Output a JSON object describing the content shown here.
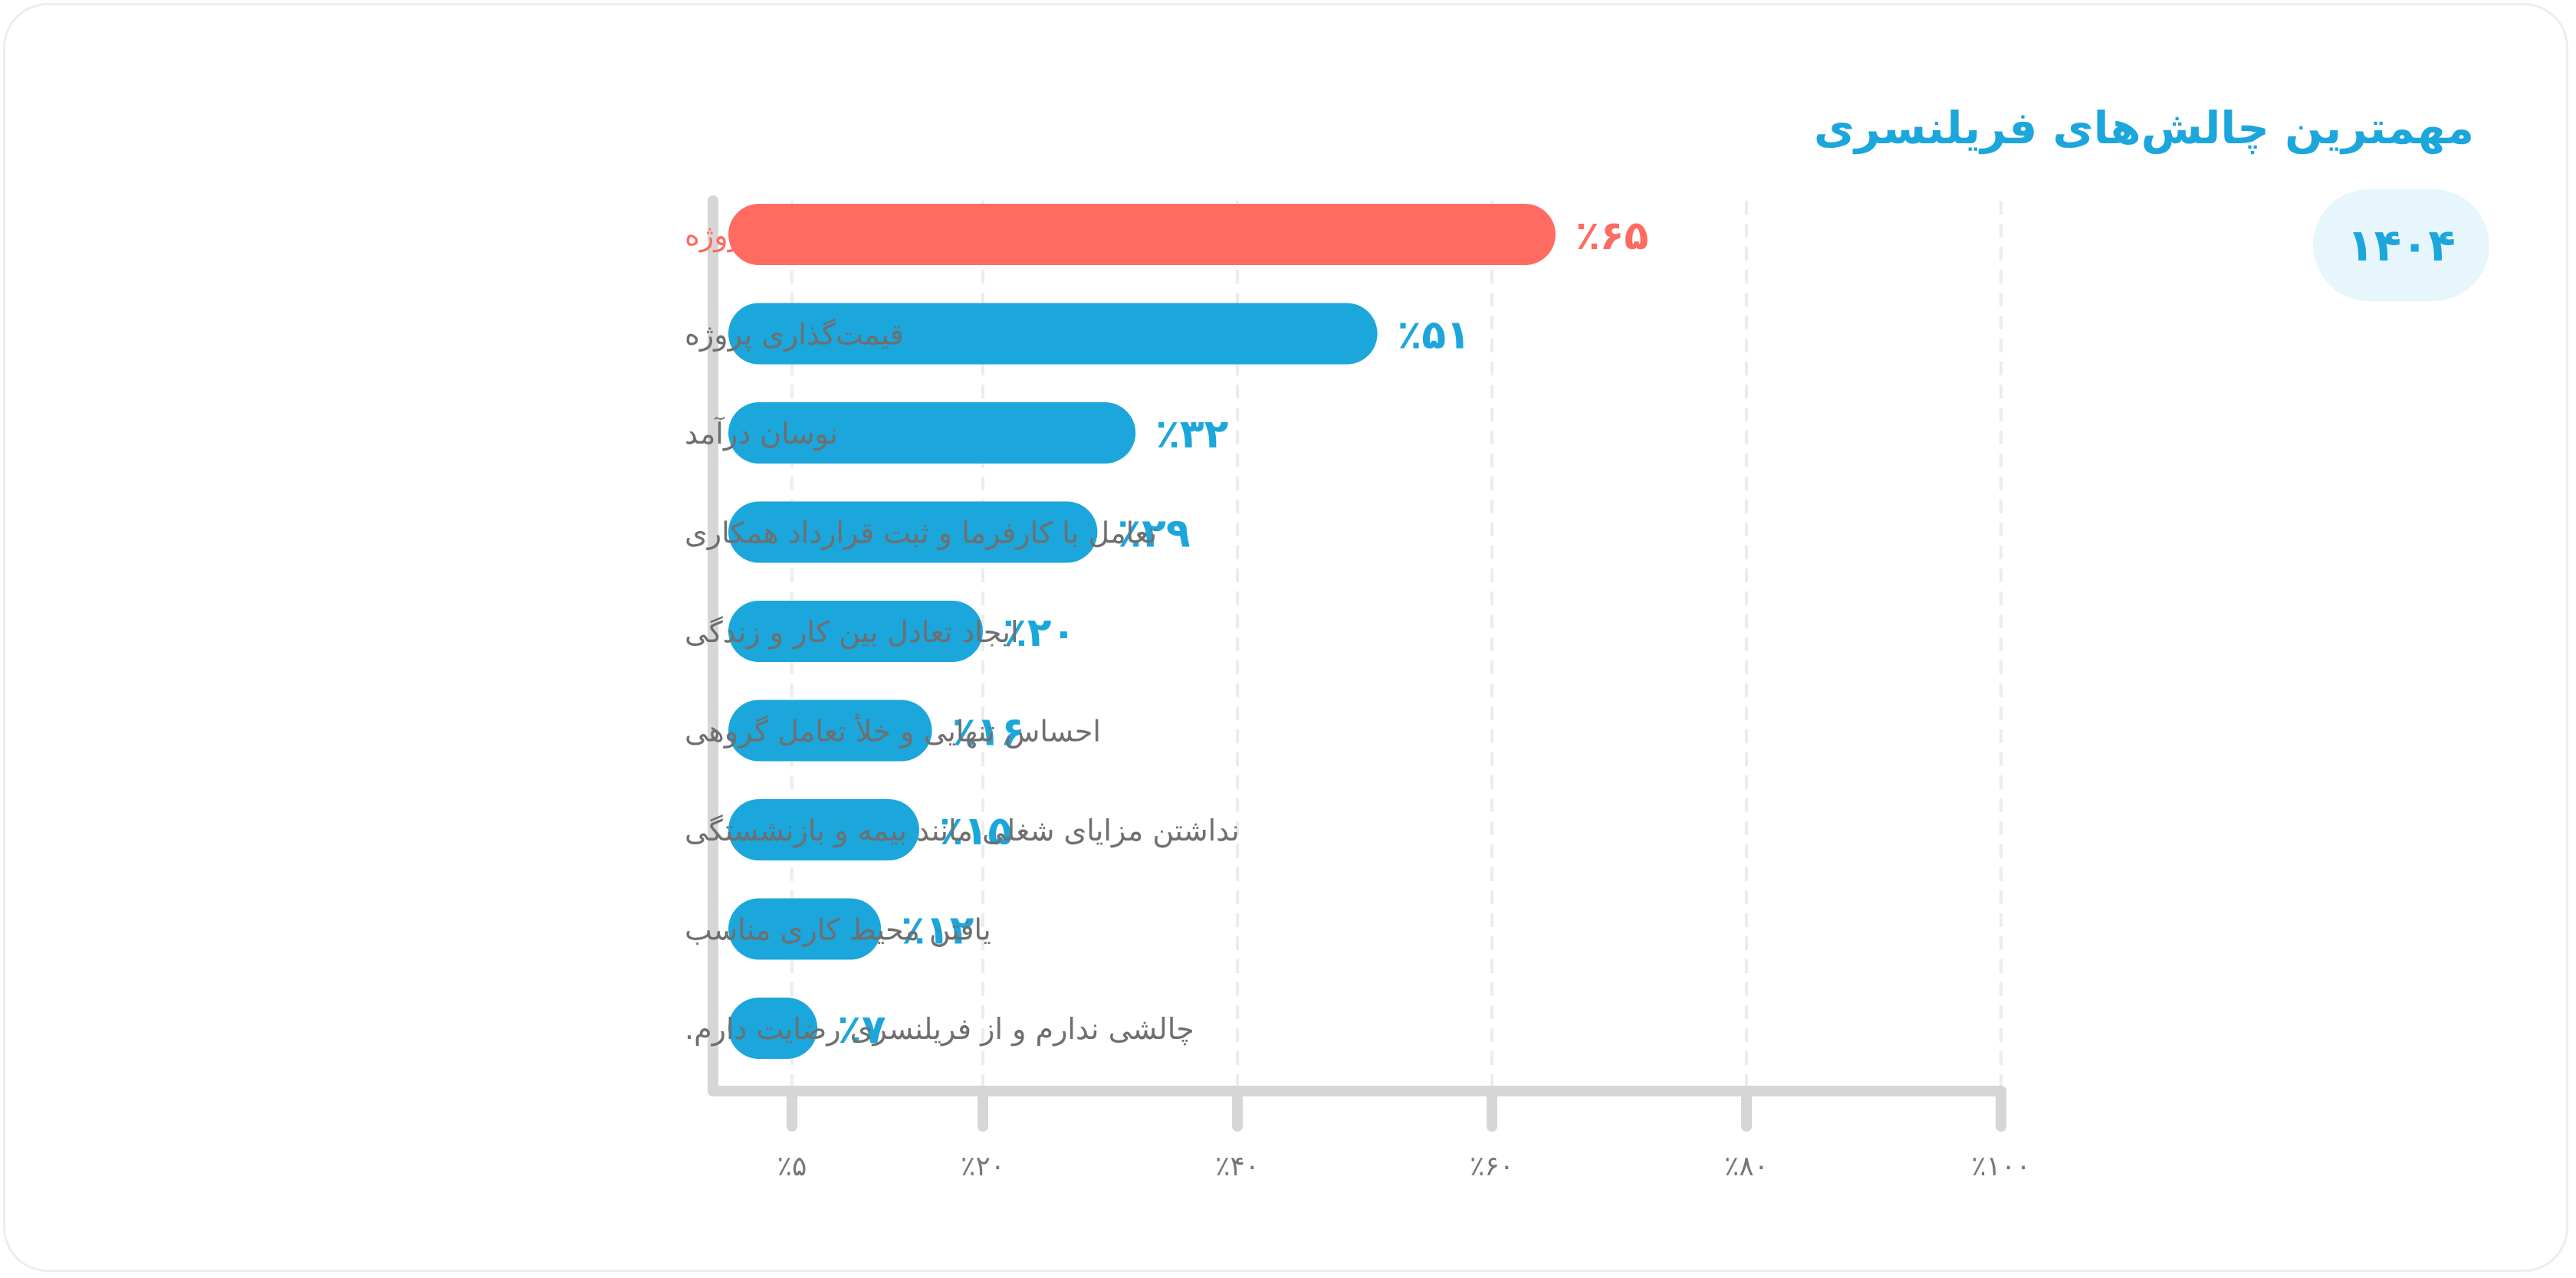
{
  "title": "مهمترین چالش‌های فریلنسری",
  "year": "۱۴۰۴",
  "colors": {
    "accent": "#1ba6dc",
    "highlight": "#ff6b61",
    "label": "#6f6f6f",
    "axis": "#d6d6d6",
    "grid": "#ececec",
    "badge_bg": "#e6f6fc"
  },
  "chart_data": {
    "type": "bar",
    "orientation": "horizontal",
    "title": "مهمترین چالش‌های فریلنسری",
    "categories": [
      "اخذ پروژه",
      "قیمت‌گذاری پروژه",
      "نوسان درآمد",
      "تعامل با کارفرما و ثبت قرارداد همکاری",
      "ایجاد تعادل بین کار و زندگی",
      "احساس تنهایی و خلأ تعامل گروهی",
      "نداشتن مزایای شغلی مانند بیمه و بازنشستگی",
      "یافتن محیط کاری مناسب",
      "چالشی ندارم و از فریلنسری رضایت دارم."
    ],
    "values": [
      65,
      51,
      32,
      29,
      20,
      16,
      15,
      12,
      7
    ],
    "value_labels": [
      "٪۶۵",
      "٪۵۱",
      "٪۳۲",
      "٪۲۹",
      "٪۲۰",
      "٪۱۶",
      "٪۱۵",
      "٪۱۲",
      "٪۷"
    ],
    "highlight_index": 0,
    "x_ticks": [
      5,
      20,
      40,
      60,
      80,
      100
    ],
    "x_tick_labels": [
      "٪۵",
      "٪۲۰",
      "٪۴۰",
      "٪۶۰",
      "٪۸۰",
      "٪۱۰۰"
    ],
    "xlim": [
      0,
      100
    ],
    "grid": true,
    "legend": "none"
  }
}
